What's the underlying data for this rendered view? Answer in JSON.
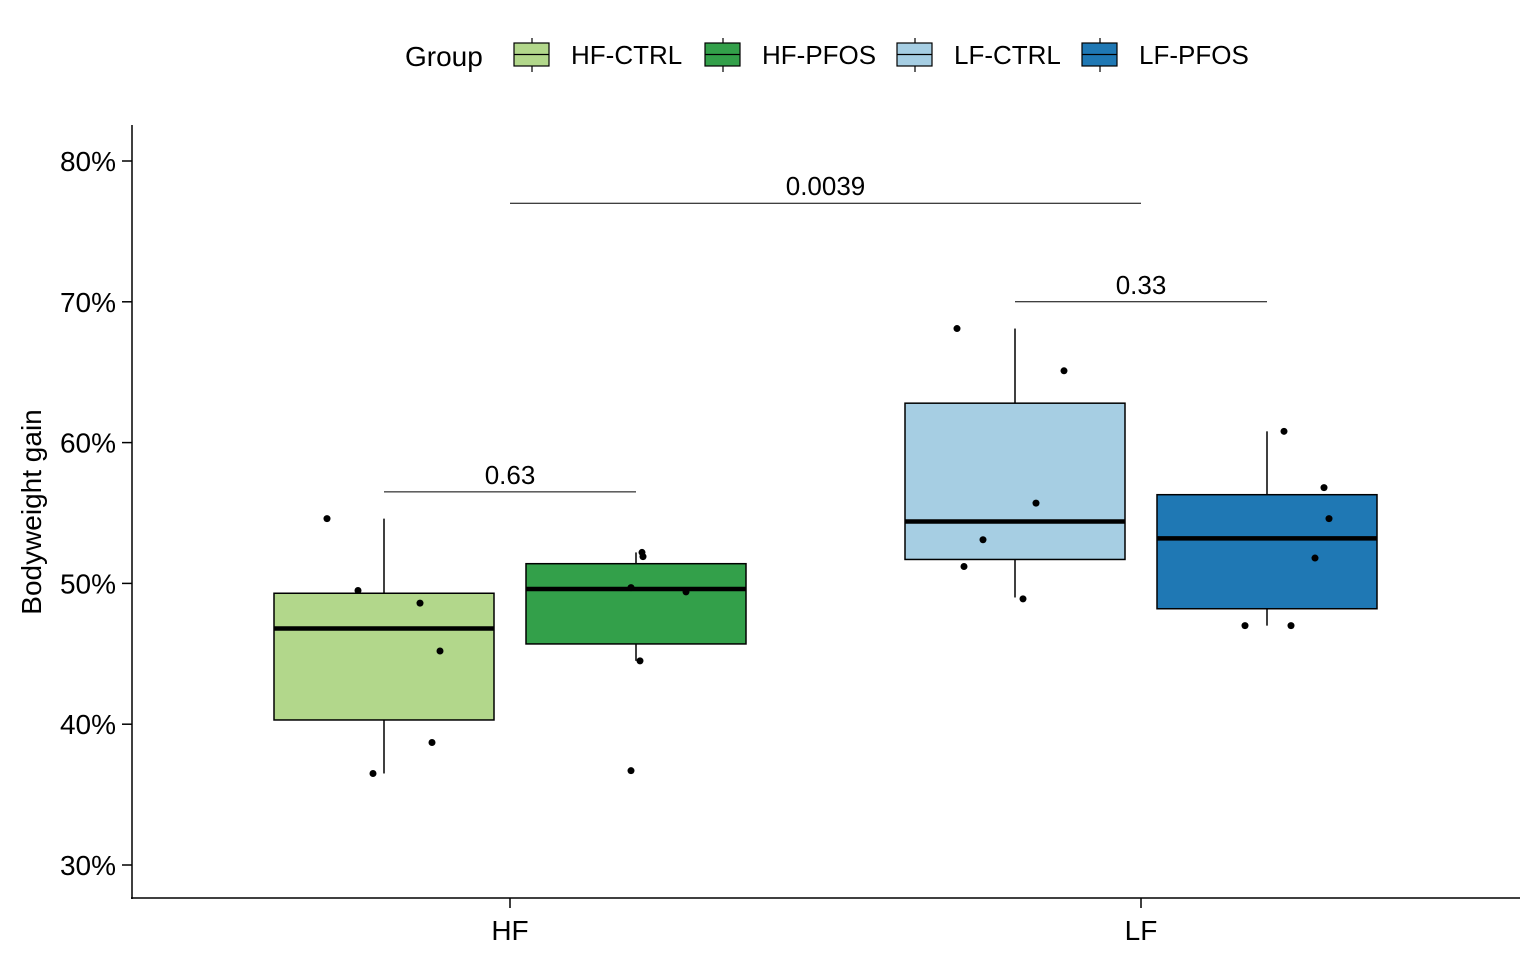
{
  "chart_data": {
    "type": "box",
    "title": "",
    "xlabel": "",
    "ylabel": "Bodyweight gain",
    "ylim": [
      27.5,
      82.5
    ],
    "yticks": [
      30,
      40,
      50,
      60,
      70,
      80
    ],
    "ytick_labels": [
      "30%",
      "40%",
      "50%",
      "60%",
      "70%",
      "80%"
    ],
    "categories": [
      "HF",
      "LF"
    ],
    "legend": {
      "title": "Group",
      "position": "top",
      "entries": [
        {
          "name": "HF-CTRL",
          "color": "#b2d78b"
        },
        {
          "name": "HF-PFOS",
          "color": "#33a04a"
        },
        {
          "name": "LF-CTRL",
          "color": "#a6cee3"
        },
        {
          "name": "LF-PFOS",
          "color": "#1f78b4"
        }
      ]
    },
    "series": [
      {
        "name": "HF-CTRL",
        "category": "HF",
        "color": "#b2d78b",
        "q1": 40.3,
        "median": 46.8,
        "q3": 49.3,
        "whisker_low": 36.5,
        "whisker_high": 54.6,
        "points": [
          54.6,
          49.5,
          48.6,
          45.2,
          38.7,
          36.5
        ]
      },
      {
        "name": "HF-PFOS",
        "category": "HF",
        "color": "#33a04a",
        "q1": 45.7,
        "median": 49.6,
        "q3": 51.4,
        "whisker_low": 44.5,
        "whisker_high": 52.2,
        "points": [
          52.2,
          51.9,
          49.7,
          49.4,
          44.5,
          36.7
        ]
      },
      {
        "name": "LF-CTRL",
        "category": "LF",
        "color": "#a6cee3",
        "q1": 51.7,
        "median": 54.4,
        "q3": 62.8,
        "whisker_low": 49.0,
        "whisker_high": 68.1,
        "points": [
          68.1,
          65.1,
          55.7,
          53.1,
          51.2,
          48.9
        ]
      },
      {
        "name": "LF-PFOS",
        "category": "LF",
        "color": "#1f78b4",
        "q1": 48.2,
        "median": 53.2,
        "q3": 56.3,
        "whisker_low": 47.0,
        "whisker_high": 60.8,
        "points": [
          60.8,
          56.8,
          54.6,
          51.8,
          47.0,
          47.0
        ]
      }
    ],
    "annotations": [
      {
        "label": "0.63",
        "from": "HF-CTRL",
        "to": "HF-PFOS",
        "y": 56.5
      },
      {
        "label": "0.33",
        "from": "LF-CTRL",
        "to": "LF-PFOS",
        "y": 70.0
      },
      {
        "label": "0.0039",
        "from": "HF",
        "to": "LF",
        "y": 77.0
      }
    ]
  }
}
